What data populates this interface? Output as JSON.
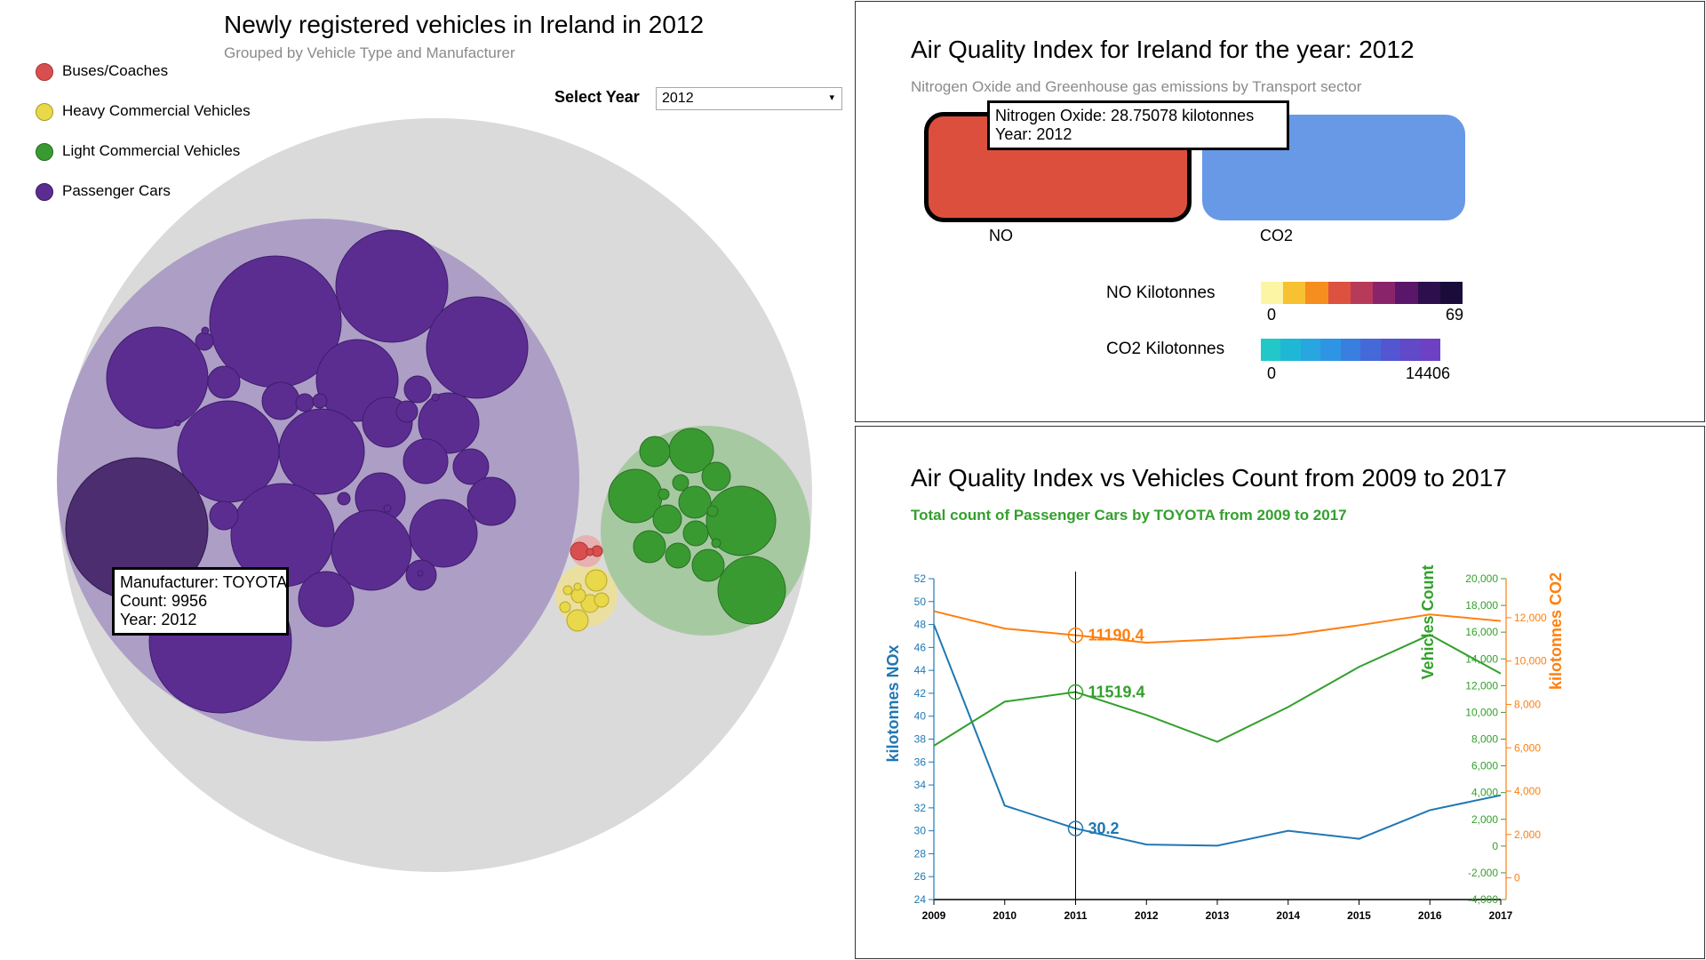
{
  "bubble_panel": {
    "title": "Newly registered vehicles in Ireland in 2012",
    "subtitle": "Grouped by Vehicle Type and Manufacturer",
    "legend": [
      {
        "label": "Buses/Coaches",
        "color": "#d94f4f"
      },
      {
        "label": "Heavy Commercial Vehicles",
        "color": "#e8d84a"
      },
      {
        "label": "Light Commercial Vehicles",
        "color": "#3a9a32"
      },
      {
        "label": "Passenger Cars",
        "color": "#5b2d91"
      }
    ],
    "select_label": "Select Year",
    "select_value": "2012",
    "select_arrow": "▾",
    "tooltip": {
      "line1": "Manufacturer: TOYOTA",
      "line2": "Count: 9956",
      "line3": "Year: 2012"
    }
  },
  "aq_panel": {
    "title": "Air Quality Index for Ireland for the year: 2012",
    "subtitle": "Nitrogen Oxide and Greenhouse gas emissions by Transport sector",
    "bars": [
      {
        "label": "NO",
        "color": "#dd4f3d"
      },
      {
        "label": "CO2",
        "color": "#6799e6"
      }
    ],
    "tooltip": {
      "line1": "Nitrogen Oxide: 28.75078 kilotonnes",
      "line2": "Year: 2012"
    },
    "no_scale": {
      "label": "NO Kilotonnes",
      "min": "0",
      "max": "69",
      "colors": [
        "#fcf5a4",
        "#f8c132",
        "#f68d1f",
        "#dc513f",
        "#b83a5a",
        "#8a246a",
        "#5a1668",
        "#2d0f4e",
        "#1a0c3a"
      ]
    },
    "co2_scale": {
      "label": "CO2 Kilotonnes",
      "min": "0",
      "max": "14406",
      "colors": [
        "#22c8c8",
        "#20b7d6",
        "#28a6e0",
        "#2e95e4",
        "#387fe0",
        "#4569d8",
        "#5356d0",
        "#6249c8",
        "#6d40c4"
      ]
    }
  },
  "line_panel": {
    "title": "Air Quality Index vs Vehicles Count from 2009 to 2017",
    "subtitle": "Total count of Passenger Cars by TOYOTA from 2009 to 2017"
  },
  "chart_data": {
    "type": "line",
    "x": [
      "2009",
      "2010",
      "2011",
      "2012",
      "2013",
      "2014",
      "2015",
      "2016",
      "2017"
    ],
    "hover_x": "2011",
    "axes": {
      "left": {
        "label": "kilotonnes NOx",
        "min": 24,
        "max": 52,
        "ticks": [
          24,
          26,
          28,
          30,
          32,
          34,
          36,
          38,
          40,
          42,
          44,
          46,
          48,
          50,
          52
        ],
        "tick_labels": [
          "24",
          "26",
          "28",
          "30",
          "32",
          "34",
          "36",
          "38",
          "40",
          "42",
          "44",
          "46",
          "48",
          "50",
          "52"
        ],
        "color": "#1f77b4"
      },
      "right_vehicles": {
        "label": "Vehicles Count",
        "min": -4000,
        "max": 20000,
        "ticks": [
          -4000,
          -2000,
          0,
          2000,
          4000,
          6000,
          8000,
          10000,
          12000,
          14000,
          16000,
          18000,
          20000
        ],
        "tick_labels": [
          "-4,000",
          "-2,000",
          "0",
          "2,000",
          "4,000",
          "6,000",
          "8,000",
          "10,000",
          "12,000",
          "14,000",
          "16,000",
          "18,000",
          "20,000"
        ],
        "color": "#33a02c"
      },
      "right_co2": {
        "label": "kilotonnes CO2",
        "min": -1000,
        "max": 13800,
        "ticks": [
          0,
          2000,
          4000,
          6000,
          8000,
          10000,
          12000
        ],
        "tick_labels": [
          "0",
          "2,000",
          "4,000",
          "6,000",
          "8,000",
          "10,000",
          "12,000"
        ],
        "color": "#ff7f0e"
      }
    },
    "series": [
      {
        "name": "kilotonnes NOx",
        "axis": "left",
        "color": "#1f77b4",
        "values": [
          48.0,
          32.2,
          30.2,
          28.8,
          28.7,
          30.0,
          29.3,
          31.8,
          33.1
        ],
        "hover_label": "30.2"
      },
      {
        "name": "Vehicles Count",
        "axis": "right_vehicles",
        "color": "#33a02c",
        "values": [
          7500,
          10800,
          11519.4,
          9800,
          7800,
          10400,
          13400,
          15800,
          12900
        ],
        "hover_label": "11519.4"
      },
      {
        "name": "kilotonnes CO2",
        "axis": "right_co2",
        "color": "#ff7f0e",
        "values": [
          12300,
          11500,
          11190.4,
          10850,
          11000,
          11200,
          11650,
          12150,
          11850
        ],
        "hover_label": "11190.4"
      }
    ]
  }
}
